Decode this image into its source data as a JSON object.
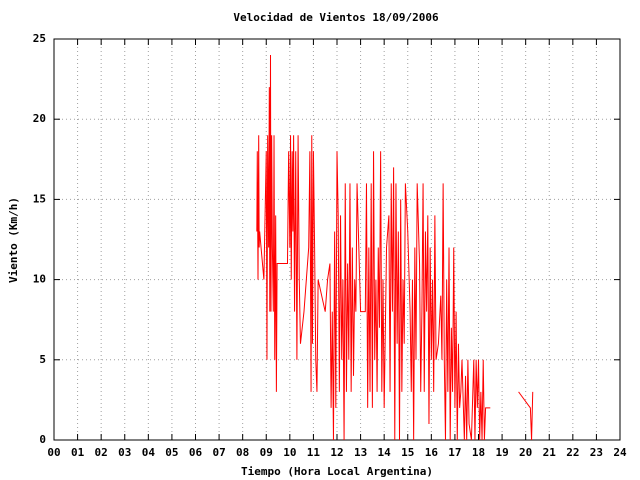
{
  "chart_data": {
    "type": "line",
    "title": "Velocidad de Vientos 18/09/2006",
    "xlabel": "Tiempo (Hora Local Argentina)",
    "ylabel": "Viento (Km/h)",
    "xlim": [
      0,
      24
    ],
    "ylim": [
      0,
      25
    ],
    "xticks": [
      {
        "value": 0,
        "label": "00"
      },
      {
        "value": 1,
        "label": "01"
      },
      {
        "value": 2,
        "label": "02"
      },
      {
        "value": 3,
        "label": "03"
      },
      {
        "value": 4,
        "label": "04"
      },
      {
        "value": 5,
        "label": "05"
      },
      {
        "value": 6,
        "label": "06"
      },
      {
        "value": 7,
        "label": "07"
      },
      {
        "value": 8,
        "label": "08"
      },
      {
        "value": 9,
        "label": "09"
      },
      10,
      11,
      12,
      13,
      14,
      15,
      16,
      17,
      18,
      19,
      20,
      21,
      22,
      23,
      24
    ],
    "yticks": [
      0,
      5,
      10,
      15,
      20,
      25
    ],
    "grid": true,
    "series": [
      {
        "color": "#ff0000",
        "x": [
          8.6,
          8.62,
          8.65,
          8.68,
          8.7,
          8.72,
          8.9,
          9.0,
          9.03,
          9.06,
          9.1,
          9.13,
          9.15,
          9.18,
          9.2,
          9.23,
          9.26,
          9.3,
          9.33,
          9.36,
          9.4,
          9.43,
          9.46,
          9.9,
          9.95,
          10.0,
          10.03,
          10.06,
          10.1,
          10.13,
          10.16,
          10.2,
          10.25,
          10.3,
          10.35,
          10.4,
          10.45,
          10.6,
          10.7,
          10.8,
          10.85,
          10.9,
          10.93,
          10.96,
          11.0,
          11.05,
          11.1,
          11.15,
          11.2,
          11.5,
          11.6,
          11.7,
          11.75,
          11.8,
          11.85,
          11.9,
          11.95,
          12.0,
          12.05,
          12.1,
          12.15,
          12.2,
          12.25,
          12.3,
          12.35,
          12.4,
          12.45,
          12.5,
          12.55,
          12.6,
          12.65,
          12.7,
          12.75,
          12.8,
          12.85,
          13.0,
          13.2,
          13.25,
          13.3,
          13.35,
          13.4,
          13.45,
          13.5,
          13.55,
          13.6,
          13.65,
          13.7,
          13.75,
          13.8,
          13.85,
          13.9,
          13.95,
          14.0,
          14.1,
          14.2,
          14.25,
          14.3,
          14.35,
          14.4,
          14.45,
          14.5,
          14.55,
          14.6,
          14.65,
          14.7,
          14.75,
          14.8,
          14.85,
          14.9,
          15.0,
          15.1,
          15.15,
          15.2,
          15.25,
          15.3,
          15.35,
          15.4,
          15.5,
          15.55,
          15.6,
          15.65,
          15.7,
          15.75,
          15.8,
          15.85,
          15.9,
          15.95,
          16.0,
          16.05,
          16.1,
          16.15,
          16.2,
          16.3,
          16.4,
          16.45,
          16.5,
          16.55,
          16.6,
          16.65,
          16.7,
          16.75,
          16.8,
          16.85,
          16.9,
          16.95,
          17.0,
          17.05,
          17.1,
          17.15,
          17.2,
          17.25,
          17.3,
          17.4,
          17.45,
          17.5,
          17.55,
          17.6,
          17.7,
          17.8,
          17.85,
          17.9,
          17.95,
          18.0,
          18.05,
          18.1,
          18.15,
          18.2,
          18.25,
          18.3,
          18.5,
          null,
          19.7,
          20.2,
          20.25,
          20.3
        ],
        "values": [
          13,
          18,
          10,
          19,
          12,
          13,
          10,
          18,
          5,
          19,
          12,
          22,
          8,
          24,
          8,
          19,
          12,
          8,
          19,
          5,
          14,
          3,
          11,
          11,
          18,
          12,
          19,
          10,
          18,
          13,
          19,
          8,
          18,
          5,
          19,
          10,
          6,
          8,
          10,
          12,
          18,
          3,
          19,
          6,
          18,
          12,
          5,
          3,
          10,
          8,
          10,
          11,
          2,
          8,
          0,
          13,
          2,
          18,
          14,
          3,
          14,
          5,
          10,
          0,
          16,
          3,
          11,
          5,
          16,
          3,
          12,
          4,
          10,
          8,
          16,
          8,
          8,
          16,
          2,
          12,
          3,
          16,
          2,
          18,
          5,
          10,
          3,
          12,
          7,
          18,
          3,
          10,
          2,
          12,
          14,
          3,
          16,
          8,
          17,
          0,
          16,
          6,
          13,
          0,
          15,
          3,
          10,
          6,
          16,
          13,
          8,
          3,
          10,
          0,
          12,
          5,
          16,
          11,
          3,
          8,
          16,
          3,
          13,
          8,
          14,
          1,
          12,
          5,
          10,
          3,
          14,
          5,
          6,
          9,
          5,
          16,
          5,
          0,
          10,
          3,
          12,
          0,
          7,
          3,
          12,
          2,
          8,
          0,
          6,
          2,
          3,
          5,
          0,
          4,
          0,
          5,
          1,
          0,
          5,
          0,
          5,
          2,
          5,
          0,
          3,
          0,
          5,
          0,
          2,
          2,
          null,
          3,
          2,
          0,
          3
        ]
      }
    ]
  }
}
